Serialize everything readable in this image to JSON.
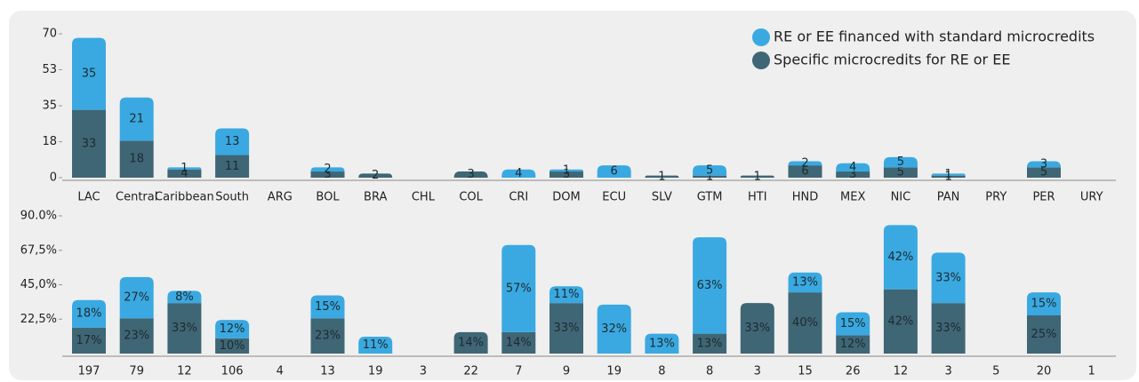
{
  "chart_data": [
    {
      "type": "stacked-bar",
      "categories": [
        "LAC",
        "Central",
        "Caribbean",
        "South",
        "ARG",
        "BOL",
        "BRA",
        "CHL",
        "COL",
        "CRI",
        "DOM",
        "ECU",
        "SLV",
        "GTM",
        "HTI",
        "HND",
        "MEX",
        "NIC",
        "PAN",
        "PRY",
        "PER",
        "URY"
      ],
      "series": [
        {
          "name": "RE or EE financed with standard microcredits",
          "color": "#3aa9e1",
          "values": [
            35,
            21,
            1,
            13,
            null,
            2,
            null,
            null,
            null,
            4,
            1,
            6,
            null,
            5,
            null,
            2,
            4,
            5,
            1,
            null,
            3,
            null
          ]
        },
        {
          "name": "Specific microcredits for RE or EE",
          "color": "#3f6675",
          "values": [
            33,
            18,
            4,
            11,
            null,
            3,
            2,
            null,
            3,
            null,
            3,
            null,
            1,
            1,
            1,
            6,
            3,
            5,
            1,
            null,
            5,
            null
          ]
        }
      ],
      "ylim": [
        0,
        70
      ],
      "yticks": [
        0,
        {
          "value": 17.5,
          "label": "18"
        },
        35,
        {
          "value": 52.5,
          "label": "53"
        },
        70
      ],
      "legend": "upper right"
    },
    {
      "type": "stacked-bar",
      "categories": [
        "197",
        "79",
        "12",
        "106",
        "4",
        "13",
        "19",
        "3",
        "22",
        "7",
        "9",
        "19",
        "8",
        "8",
        "3",
        "15",
        "26",
        "12",
        "3",
        "5",
        "20",
        "1"
      ],
      "series": [
        {
          "color": "#3aa9e1",
          "values": [
            18,
            27,
            8,
            12,
            null,
            15,
            11,
            null,
            null,
            57,
            11,
            32,
            13,
            63,
            null,
            13,
            15,
            42,
            33,
            null,
            15,
            null
          ],
          "value_labels": [
            "18%",
            "27%",
            "8%",
            "12%",
            null,
            "15%",
            "11%",
            null,
            null,
            "57%",
            "11%",
            "32%",
            "13%",
            "63%",
            null,
            "13%",
            "15%",
            "42%",
            "33%",
            null,
            "15%",
            null
          ]
        },
        {
          "color": "#3f6675",
          "values": [
            17,
            23,
            33,
            10,
            null,
            23,
            null,
            null,
            14,
            14,
            33,
            null,
            null,
            13,
            33,
            40,
            12,
            42,
            33,
            null,
            25,
            null
          ],
          "value_labels": [
            "17%",
            "23%",
            "33%",
            "10%",
            null,
            "23%",
            null,
            null,
            "14%",
            "14%",
            "33%",
            null,
            null,
            "13%",
            "33%",
            "40%",
            "12%",
            "42%",
            "33%",
            null,
            "25%",
            null
          ]
        }
      ],
      "ylim": [
        0,
        90
      ],
      "yticks": [
        {
          "value": 22.5,
          "label": "22,5%"
        },
        {
          "value": 45,
          "label": "45,0%"
        },
        {
          "value": 67.5,
          "label": "67,5%"
        },
        {
          "value": 90,
          "label": "90.0%"
        }
      ]
    }
  ]
}
